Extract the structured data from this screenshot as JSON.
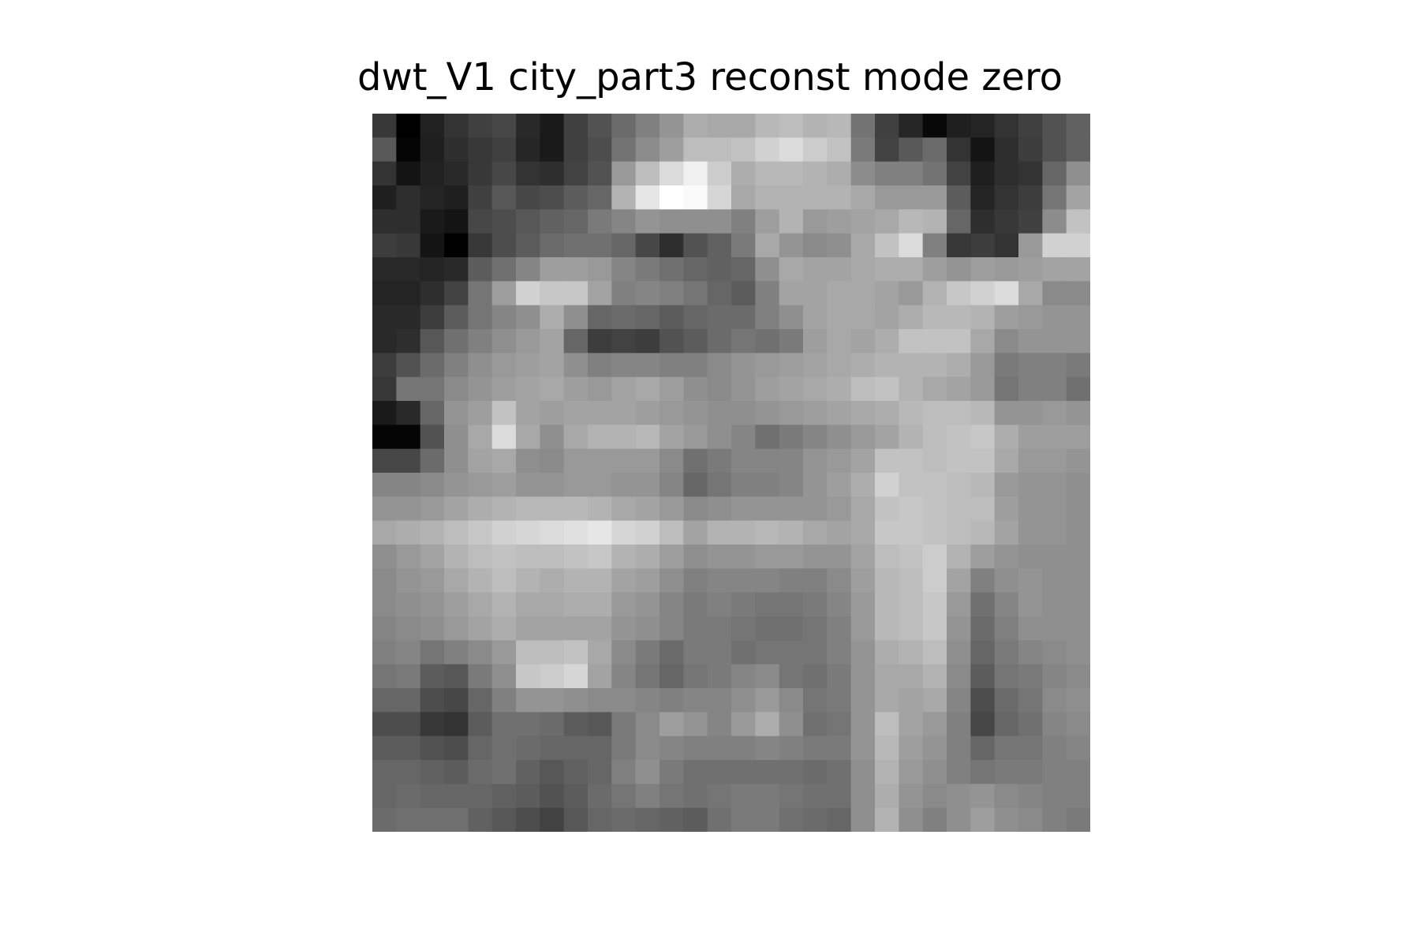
{
  "figure": {
    "title": "dwt_V1 city_part3 reconst mode zero"
  },
  "image": {
    "colormap": "gray",
    "rows": 30,
    "cols": 30,
    "pixels": [
      [
        0.22,
        0.0,
        0.13,
        0.2,
        0.25,
        0.28,
        0.16,
        0.1,
        0.25,
        0.32,
        0.42,
        0.5,
        0.58,
        0.68,
        0.66,
        0.66,
        0.72,
        0.74,
        0.7,
        0.72,
        0.45,
        0.25,
        0.15,
        0.03,
        0.12,
        0.14,
        0.2,
        0.25,
        0.32,
        0.38
      ],
      [
        0.35,
        0.02,
        0.12,
        0.18,
        0.22,
        0.25,
        0.15,
        0.1,
        0.25,
        0.3,
        0.45,
        0.55,
        0.62,
        0.74,
        0.74,
        0.76,
        0.82,
        0.86,
        0.8,
        0.76,
        0.48,
        0.26,
        0.35,
        0.42,
        0.2,
        0.08,
        0.18,
        0.24,
        0.32,
        0.38
      ],
      [
        0.2,
        0.08,
        0.13,
        0.16,
        0.22,
        0.28,
        0.2,
        0.18,
        0.26,
        0.32,
        0.6,
        0.74,
        0.86,
        0.94,
        0.8,
        0.68,
        0.72,
        0.72,
        0.7,
        0.68,
        0.55,
        0.5,
        0.5,
        0.45,
        0.26,
        0.12,
        0.18,
        0.2,
        0.4,
        0.56
      ],
      [
        0.12,
        0.18,
        0.14,
        0.12,
        0.25,
        0.34,
        0.28,
        0.3,
        0.36,
        0.4,
        0.7,
        0.9,
        1.0,
        0.98,
        0.84,
        0.66,
        0.7,
        0.7,
        0.7,
        0.7,
        0.66,
        0.6,
        0.6,
        0.6,
        0.36,
        0.14,
        0.2,
        0.24,
        0.46,
        0.64
      ],
      [
        0.18,
        0.18,
        0.1,
        0.08,
        0.28,
        0.3,
        0.34,
        0.38,
        0.4,
        0.48,
        0.52,
        0.58,
        0.56,
        0.56,
        0.56,
        0.5,
        0.62,
        0.7,
        0.6,
        0.62,
        0.64,
        0.66,
        0.72,
        0.7,
        0.4,
        0.18,
        0.22,
        0.25,
        0.55,
        0.76
      ],
      [
        0.24,
        0.22,
        0.08,
        0.0,
        0.22,
        0.3,
        0.36,
        0.42,
        0.44,
        0.44,
        0.4,
        0.28,
        0.18,
        0.32,
        0.38,
        0.48,
        0.66,
        0.58,
        0.54,
        0.56,
        0.66,
        0.76,
        0.86,
        0.5,
        0.22,
        0.24,
        0.2,
        0.6,
        0.82,
        0.82
      ],
      [
        0.16,
        0.16,
        0.14,
        0.16,
        0.36,
        0.44,
        0.52,
        0.62,
        0.62,
        0.6,
        0.52,
        0.48,
        0.44,
        0.4,
        0.38,
        0.4,
        0.56,
        0.66,
        0.64,
        0.64,
        0.66,
        0.68,
        0.68,
        0.62,
        0.58,
        0.62,
        0.6,
        0.62,
        0.64,
        0.64
      ],
      [
        0.14,
        0.14,
        0.18,
        0.26,
        0.46,
        0.62,
        0.82,
        0.78,
        0.78,
        0.64,
        0.5,
        0.52,
        0.5,
        0.46,
        0.4,
        0.36,
        0.5,
        0.64,
        0.64,
        0.66,
        0.66,
        0.64,
        0.6,
        0.7,
        0.78,
        0.82,
        0.86,
        0.66,
        0.54,
        0.54
      ],
      [
        0.16,
        0.16,
        0.24,
        0.36,
        0.46,
        0.52,
        0.56,
        0.68,
        0.56,
        0.4,
        0.42,
        0.4,
        0.36,
        0.4,
        0.42,
        0.42,
        0.5,
        0.56,
        0.64,
        0.66,
        0.66,
        0.64,
        0.68,
        0.72,
        0.72,
        0.7,
        0.62,
        0.6,
        0.58,
        0.58
      ],
      [
        0.16,
        0.18,
        0.34,
        0.44,
        0.5,
        0.56,
        0.6,
        0.64,
        0.4,
        0.24,
        0.26,
        0.24,
        0.32,
        0.36,
        0.42,
        0.46,
        0.44,
        0.48,
        0.62,
        0.66,
        0.64,
        0.68,
        0.76,
        0.76,
        0.76,
        0.66,
        0.54,
        0.58,
        0.58,
        0.58
      ],
      [
        0.24,
        0.32,
        0.42,
        0.5,
        0.56,
        0.6,
        0.62,
        0.64,
        0.56,
        0.5,
        0.52,
        0.52,
        0.5,
        0.5,
        0.54,
        0.58,
        0.6,
        0.62,
        0.64,
        0.66,
        0.68,
        0.7,
        0.7,
        0.7,
        0.68,
        0.6,
        0.48,
        0.5,
        0.5,
        0.48
      ],
      [
        0.22,
        0.46,
        0.46,
        0.54,
        0.58,
        0.62,
        0.64,
        0.66,
        0.62,
        0.6,
        0.64,
        0.66,
        0.62,
        0.56,
        0.54,
        0.58,
        0.62,
        0.64,
        0.66,
        0.68,
        0.74,
        0.76,
        0.7,
        0.66,
        0.64,
        0.6,
        0.46,
        0.5,
        0.5,
        0.44
      ],
      [
        0.1,
        0.16,
        0.4,
        0.58,
        0.62,
        0.76,
        0.64,
        0.62,
        0.64,
        0.64,
        0.64,
        0.62,
        0.6,
        0.58,
        0.56,
        0.56,
        0.58,
        0.6,
        0.62,
        0.64,
        0.66,
        0.68,
        0.72,
        0.74,
        0.74,
        0.72,
        0.58,
        0.58,
        0.6,
        0.58
      ],
      [
        0.02,
        0.02,
        0.32,
        0.56,
        0.66,
        0.86,
        0.66,
        0.56,
        0.66,
        0.7,
        0.7,
        0.72,
        0.64,
        0.6,
        0.56,
        0.52,
        0.44,
        0.48,
        0.52,
        0.56,
        0.6,
        0.64,
        0.7,
        0.74,
        0.76,
        0.78,
        0.68,
        0.62,
        0.62,
        0.62
      ],
      [
        0.28,
        0.28,
        0.42,
        0.56,
        0.64,
        0.66,
        0.56,
        0.54,
        0.6,
        0.6,
        0.6,
        0.6,
        0.54,
        0.44,
        0.48,
        0.52,
        0.52,
        0.52,
        0.58,
        0.6,
        0.64,
        0.76,
        0.76,
        0.74,
        0.76,
        0.76,
        0.66,
        0.6,
        0.6,
        0.58
      ],
      [
        0.52,
        0.52,
        0.54,
        0.58,
        0.6,
        0.62,
        0.58,
        0.58,
        0.6,
        0.6,
        0.58,
        0.58,
        0.52,
        0.4,
        0.46,
        0.5,
        0.5,
        0.52,
        0.58,
        0.62,
        0.68,
        0.82,
        0.76,
        0.76,
        0.74,
        0.72,
        0.6,
        0.58,
        0.58,
        0.56
      ],
      [
        0.58,
        0.58,
        0.6,
        0.64,
        0.68,
        0.7,
        0.72,
        0.72,
        0.72,
        0.7,
        0.66,
        0.64,
        0.6,
        0.54,
        0.56,
        0.58,
        0.58,
        0.58,
        0.58,
        0.6,
        0.66,
        0.76,
        0.78,
        0.76,
        0.74,
        0.74,
        0.62,
        0.58,
        0.58,
        0.56
      ],
      [
        0.66,
        0.68,
        0.7,
        0.74,
        0.78,
        0.82,
        0.84,
        0.86,
        0.88,
        0.9,
        0.84,
        0.82,
        0.74,
        0.64,
        0.7,
        0.7,
        0.72,
        0.7,
        0.66,
        0.64,
        0.66,
        0.78,
        0.78,
        0.76,
        0.74,
        0.72,
        0.64,
        0.58,
        0.58,
        0.56
      ],
      [
        0.56,
        0.6,
        0.64,
        0.7,
        0.74,
        0.76,
        0.74,
        0.74,
        0.76,
        0.78,
        0.7,
        0.68,
        0.62,
        0.56,
        0.58,
        0.58,
        0.6,
        0.6,
        0.58,
        0.58,
        0.64,
        0.74,
        0.76,
        0.8,
        0.7,
        0.62,
        0.58,
        0.56,
        0.56,
        0.56
      ],
      [
        0.54,
        0.58,
        0.6,
        0.66,
        0.7,
        0.74,
        0.7,
        0.68,
        0.7,
        0.7,
        0.64,
        0.62,
        0.56,
        0.5,
        0.52,
        0.52,
        0.52,
        0.5,
        0.5,
        0.54,
        0.62,
        0.72,
        0.74,
        0.8,
        0.64,
        0.5,
        0.56,
        0.58,
        0.56,
        0.56
      ],
      [
        0.54,
        0.56,
        0.58,
        0.62,
        0.66,
        0.7,
        0.66,
        0.66,
        0.68,
        0.68,
        0.6,
        0.58,
        0.52,
        0.48,
        0.5,
        0.48,
        0.46,
        0.46,
        0.48,
        0.52,
        0.6,
        0.72,
        0.74,
        0.78,
        0.6,
        0.44,
        0.52,
        0.58,
        0.56,
        0.56
      ],
      [
        0.52,
        0.54,
        0.56,
        0.6,
        0.64,
        0.68,
        0.64,
        0.64,
        0.64,
        0.64,
        0.58,
        0.56,
        0.52,
        0.48,
        0.48,
        0.46,
        0.44,
        0.44,
        0.46,
        0.5,
        0.6,
        0.72,
        0.74,
        0.78,
        0.58,
        0.42,
        0.5,
        0.56,
        0.56,
        0.56
      ],
      [
        0.5,
        0.52,
        0.46,
        0.5,
        0.54,
        0.6,
        0.74,
        0.74,
        0.76,
        0.66,
        0.54,
        0.48,
        0.42,
        0.48,
        0.48,
        0.44,
        0.46,
        0.46,
        0.46,
        0.5,
        0.58,
        0.68,
        0.7,
        0.74,
        0.56,
        0.4,
        0.48,
        0.52,
        0.54,
        0.56
      ],
      [
        0.46,
        0.48,
        0.36,
        0.34,
        0.48,
        0.56,
        0.78,
        0.8,
        0.84,
        0.64,
        0.52,
        0.46,
        0.4,
        0.46,
        0.48,
        0.52,
        0.54,
        0.46,
        0.44,
        0.48,
        0.58,
        0.66,
        0.66,
        0.7,
        0.54,
        0.36,
        0.46,
        0.48,
        0.52,
        0.54
      ],
      [
        0.4,
        0.4,
        0.3,
        0.28,
        0.4,
        0.5,
        0.58,
        0.58,
        0.56,
        0.54,
        0.54,
        0.52,
        0.5,
        0.52,
        0.52,
        0.56,
        0.6,
        0.54,
        0.46,
        0.48,
        0.58,
        0.66,
        0.64,
        0.66,
        0.52,
        0.3,
        0.42,
        0.46,
        0.54,
        0.56
      ],
      [
        0.3,
        0.3,
        0.22,
        0.2,
        0.36,
        0.44,
        0.44,
        0.42,
        0.36,
        0.34,
        0.48,
        0.54,
        0.62,
        0.58,
        0.52,
        0.6,
        0.68,
        0.56,
        0.44,
        0.46,
        0.58,
        0.74,
        0.64,
        0.6,
        0.5,
        0.28,
        0.4,
        0.44,
        0.52,
        0.54
      ],
      [
        0.36,
        0.36,
        0.32,
        0.3,
        0.4,
        0.44,
        0.42,
        0.4,
        0.4,
        0.4,
        0.48,
        0.54,
        0.52,
        0.5,
        0.5,
        0.5,
        0.52,
        0.5,
        0.48,
        0.48,
        0.58,
        0.72,
        0.62,
        0.58,
        0.5,
        0.4,
        0.46,
        0.46,
        0.5,
        0.52
      ],
      [
        0.4,
        0.4,
        0.38,
        0.36,
        0.42,
        0.44,
        0.38,
        0.34,
        0.38,
        0.4,
        0.5,
        0.56,
        0.48,
        0.44,
        0.44,
        0.44,
        0.44,
        0.44,
        0.42,
        0.44,
        0.56,
        0.7,
        0.6,
        0.56,
        0.5,
        0.46,
        0.48,
        0.48,
        0.5,
        0.5
      ],
      [
        0.4,
        0.42,
        0.4,
        0.4,
        0.4,
        0.38,
        0.36,
        0.32,
        0.36,
        0.42,
        0.46,
        0.5,
        0.46,
        0.44,
        0.46,
        0.48,
        0.48,
        0.46,
        0.44,
        0.44,
        0.56,
        0.68,
        0.58,
        0.54,
        0.56,
        0.58,
        0.54,
        0.52,
        0.5,
        0.5
      ],
      [
        0.42,
        0.44,
        0.44,
        0.44,
        0.38,
        0.34,
        0.3,
        0.26,
        0.34,
        0.4,
        0.42,
        0.4,
        0.38,
        0.36,
        0.44,
        0.48,
        0.48,
        0.44,
        0.42,
        0.4,
        0.56,
        0.7,
        0.56,
        0.5,
        0.56,
        0.62,
        0.56,
        0.54,
        0.5,
        0.48
      ]
    ]
  }
}
